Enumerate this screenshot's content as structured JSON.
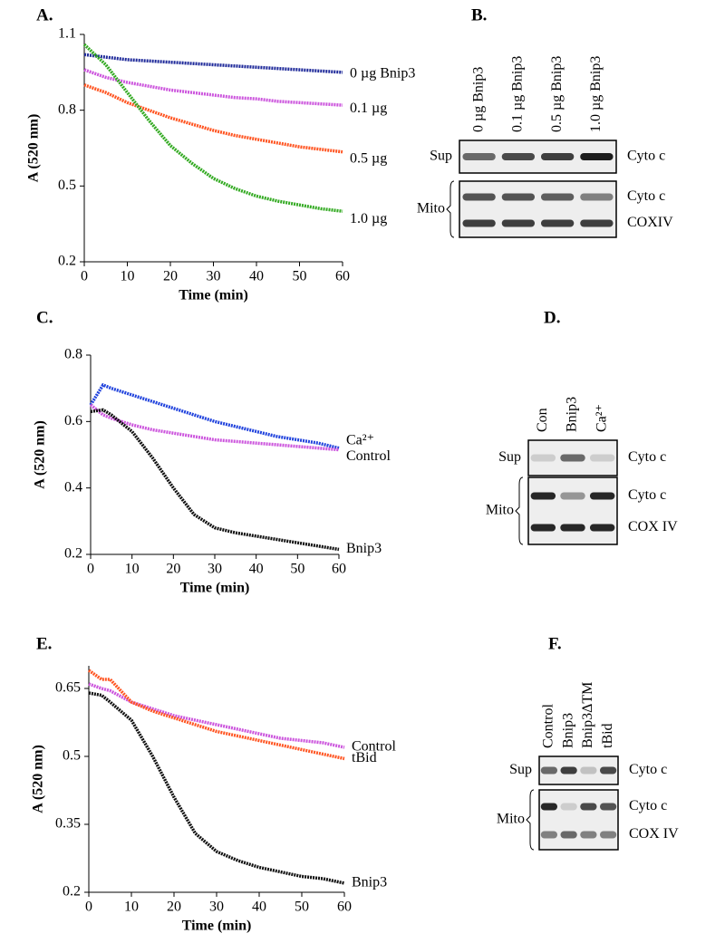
{
  "chart_data": [
    {
      "type": "line",
      "panel": "A.",
      "ylabel": "A (520 nm)",
      "xlabel": "Time (min)",
      "x": [
        0,
        5,
        10,
        15,
        20,
        25,
        30,
        35,
        40,
        45,
        50,
        55,
        60
      ],
      "xlim": [
        0,
        60
      ],
      "xticks": [
        0,
        10,
        20,
        30,
        40,
        50,
        60
      ],
      "ylim": [
        0.2,
        1.1
      ],
      "yticks": [
        0.2,
        0.5,
        0.8,
        1.1
      ],
      "series": [
        {
          "name": "0 µg Bnip3",
          "color": "#1f2a9a",
          "values": [
            1.02,
            1.01,
            1.0,
            0.995,
            0.99,
            0.985,
            0.98,
            0.975,
            0.97,
            0.965,
            0.96,
            0.955,
            0.95
          ]
        },
        {
          "name": "0.1 µg",
          "color": "#cc55dd",
          "values": [
            0.96,
            0.93,
            0.91,
            0.895,
            0.88,
            0.87,
            0.86,
            0.85,
            0.845,
            0.835,
            0.83,
            0.825,
            0.82
          ]
        },
        {
          "name": "0.5 µg",
          "color": "#ff5522",
          "values": [
            0.9,
            0.87,
            0.83,
            0.8,
            0.77,
            0.745,
            0.72,
            0.7,
            0.685,
            0.67,
            0.655,
            0.645,
            0.635
          ]
        },
        {
          "name": "1.0 µg",
          "color": "#33aa22",
          "values": [
            1.06,
            0.98,
            0.87,
            0.76,
            0.66,
            0.59,
            0.53,
            0.49,
            0.46,
            0.44,
            0.425,
            0.41,
            0.4
          ]
        }
      ]
    },
    {
      "type": "line",
      "panel": "C.",
      "ylabel": "A (520 nm)",
      "xlabel": "Time (min)",
      "x": [
        0,
        3,
        5,
        10,
        15,
        20,
        25,
        30,
        35,
        40,
        45,
        50,
        55,
        60
      ],
      "xlim": [
        0,
        60
      ],
      "xticks": [
        0,
        10,
        20,
        30,
        40,
        50,
        60
      ],
      "ylim": [
        0.2,
        0.8
      ],
      "yticks": [
        0.2,
        0.4,
        0.6,
        0.8
      ],
      "series": [
        {
          "name": "Ca²⁺",
          "color": "#2244dd",
          "values": [
            0.65,
            0.71,
            0.7,
            0.68,
            0.66,
            0.64,
            0.62,
            0.6,
            0.585,
            0.57,
            0.555,
            0.545,
            0.535,
            0.52
          ]
        },
        {
          "name": "Control",
          "color": "#cc55dd",
          "values": [
            0.65,
            0.62,
            0.61,
            0.59,
            0.575,
            0.565,
            0.555,
            0.545,
            0.54,
            0.535,
            0.53,
            0.525,
            0.52,
            0.515
          ]
        },
        {
          "name": "Bnip3",
          "color": "#111111",
          "values": [
            0.63,
            0.635,
            0.62,
            0.57,
            0.49,
            0.4,
            0.32,
            0.28,
            0.265,
            0.255,
            0.245,
            0.235,
            0.225,
            0.215
          ]
        }
      ]
    },
    {
      "type": "line",
      "panel": "E.",
      "ylabel": "A (520 nm)",
      "xlabel": "Time (min)",
      "x": [
        0,
        3,
        5,
        10,
        15,
        20,
        25,
        30,
        35,
        40,
        45,
        50,
        55,
        60
      ],
      "xlim": [
        0,
        60
      ],
      "xticks": [
        0,
        10,
        20,
        30,
        40,
        50,
        60
      ],
      "ylim": [
        0.2,
        0.7
      ],
      "yticks": [
        0.2,
        0.35,
        0.5,
        0.65
      ],
      "series": [
        {
          "name": "Control",
          "color": "#cc55dd",
          "values": [
            0.66,
            0.65,
            0.645,
            0.62,
            0.605,
            0.59,
            0.58,
            0.57,
            0.56,
            0.55,
            0.54,
            0.535,
            0.53,
            0.52
          ]
        },
        {
          "name": "tBid",
          "color": "#ff5522",
          "values": [
            0.69,
            0.67,
            0.67,
            0.62,
            0.6,
            0.585,
            0.57,
            0.555,
            0.545,
            0.535,
            0.525,
            0.515,
            0.505,
            0.495
          ]
        },
        {
          "name": "Bnip3",
          "color": "#111111",
          "values": [
            0.64,
            0.635,
            0.62,
            0.58,
            0.5,
            0.41,
            0.33,
            0.29,
            0.27,
            0.255,
            0.245,
            0.235,
            0.23,
            0.22
          ]
        }
      ]
    }
  ],
  "blots": [
    {
      "panel": "B.",
      "lanes": [
        "0 µg Bnip3",
        "0.1 µg Bnip3",
        "0.5 µg Bnip3",
        "1.0 µg Bnip3"
      ],
      "rows": [
        "Sup",
        "Mito"
      ],
      "bands": [
        "Cyto c",
        "Cyto c",
        "COXIV"
      ]
    },
    {
      "panel": "D.",
      "lanes": [
        "Con",
        "Bnip3",
        "Ca²⁺"
      ],
      "rows": [
        "Sup",
        "Mito"
      ],
      "bands": [
        "Cyto c",
        "Cyto c",
        "COX IV"
      ]
    },
    {
      "panel": "F.",
      "lanes": [
        "Control",
        "Bnip3",
        "Bnip3ΔTM",
        "tBid"
      ],
      "rows": [
        "Sup",
        "Mito"
      ],
      "bands": [
        "Cyto c",
        "Cyto c",
        "COX IV"
      ]
    }
  ]
}
